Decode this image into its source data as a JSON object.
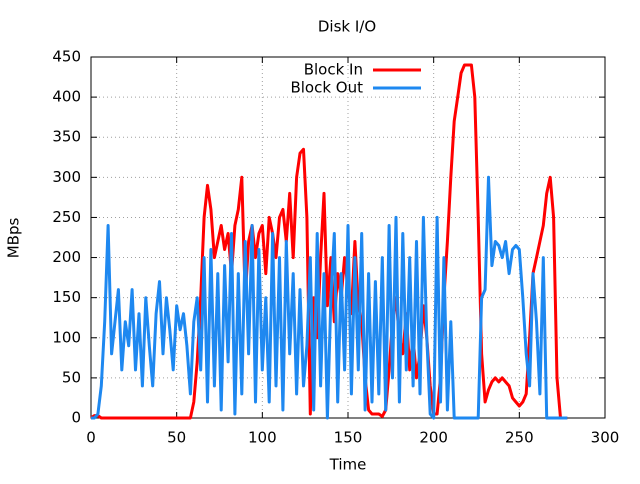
{
  "chart_data": {
    "type": "line",
    "title": "Disk I/O",
    "xlabel": "Time",
    "ylabel": "MBps",
    "x": [
      0,
      2,
      4,
      6,
      8,
      10,
      12,
      14,
      16,
      18,
      20,
      22,
      24,
      26,
      28,
      30,
      32,
      34,
      36,
      38,
      40,
      42,
      44,
      46,
      48,
      50,
      52,
      54,
      56,
      58,
      60,
      62,
      64,
      66,
      68,
      70,
      72,
      74,
      76,
      78,
      80,
      82,
      84,
      86,
      88,
      90,
      92,
      94,
      96,
      98,
      100,
      102,
      104,
      106,
      108,
      110,
      112,
      114,
      116,
      118,
      120,
      122,
      124,
      126,
      128,
      130,
      132,
      134,
      136,
      138,
      140,
      142,
      144,
      146,
      148,
      150,
      152,
      154,
      156,
      158,
      160,
      162,
      164,
      166,
      168,
      170,
      172,
      174,
      176,
      178,
      180,
      182,
      184,
      186,
      188,
      190,
      192,
      194,
      196,
      198,
      200,
      202,
      204,
      206,
      208,
      210,
      212,
      214,
      216,
      218,
      220,
      222,
      224,
      226,
      228,
      230,
      232,
      234,
      236,
      238,
      240,
      242,
      244,
      246,
      248,
      250,
      252,
      254,
      256,
      258,
      260,
      262,
      264,
      266,
      268,
      270,
      272,
      274,
      276,
      278
    ],
    "series": [
      {
        "name": "Block In",
        "color": "#ff0000",
        "values": [
          0,
          3,
          3,
          0,
          0,
          0,
          0,
          0,
          0,
          0,
          0,
          0,
          0,
          0,
          0,
          0,
          0,
          0,
          0,
          0,
          0,
          0,
          0,
          0,
          0,
          0,
          0,
          0,
          0,
          0,
          20,
          70,
          150,
          250,
          290,
          260,
          200,
          220,
          240,
          210,
          230,
          180,
          240,
          260,
          300,
          150,
          220,
          240,
          200,
          230,
          240,
          180,
          250,
          230,
          200,
          250,
          260,
          220,
          280,
          200,
          300,
          330,
          335,
          250,
          5,
          150,
          100,
          200,
          280,
          140,
          200,
          120,
          180,
          150,
          200,
          160,
          130,
          220,
          140,
          120,
          50,
          10,
          5,
          5,
          5,
          2,
          10,
          60,
          120,
          150,
          100,
          80,
          130,
          60,
          100,
          50,
          80,
          140,
          100,
          40,
          5,
          5,
          50,
          150,
          220,
          300,
          370,
          400,
          430,
          440,
          440,
          440,
          400,
          250,
          80,
          20,
          35,
          45,
          50,
          45,
          50,
          45,
          40,
          25,
          20,
          15,
          20,
          30,
          100,
          180,
          200,
          220,
          240,
          280,
          300,
          250,
          50,
          0,
          0,
          0
        ]
      },
      {
        "name": "Block Out",
        "color": "#1e88f0",
        "values": [
          0,
          0,
          5,
          40,
          120,
          240,
          80,
          120,
          160,
          60,
          120,
          90,
          160,
          60,
          130,
          40,
          150,
          90,
          40,
          130,
          170,
          80,
          150,
          110,
          60,
          140,
          110,
          130,
          90,
          30,
          120,
          150,
          60,
          200,
          20,
          210,
          40,
          180,
          10,
          190,
          70,
          230,
          5,
          180,
          30,
          220,
          80,
          240,
          20,
          210,
          60,
          150,
          20,
          230,
          40,
          200,
          10,
          220,
          80,
          180,
          30,
          160,
          40,
          90,
          200,
          10,
          230,
          40,
          180,
          0,
          150,
          230,
          20,
          180,
          60,
          240,
          30,
          200,
          60,
          230,
          10,
          180,
          20,
          170,
          30,
          200,
          10,
          240,
          50,
          250,
          20,
          230,
          60,
          200,
          40,
          220,
          30,
          250,
          100,
          5,
          0,
          250,
          20,
          200,
          10,
          120,
          0,
          0,
          0,
          0,
          0,
          0,
          0,
          0,
          150,
          160,
          300,
          190,
          220,
          215,
          200,
          220,
          180,
          210,
          215,
          210,
          150,
          80,
          40,
          180,
          120,
          30,
          200,
          0,
          0,
          0,
          0,
          0,
          0,
          0
        ]
      }
    ],
    "xlim": [
      0,
      300
    ],
    "xticks": [
      0,
      50,
      100,
      150,
      200,
      250,
      300
    ],
    "ylim": [
      0,
      450
    ],
    "yticks": [
      0,
      50,
      100,
      150,
      200,
      250,
      300,
      350,
      400,
      450
    ],
    "grid": true,
    "legend": "top"
  }
}
